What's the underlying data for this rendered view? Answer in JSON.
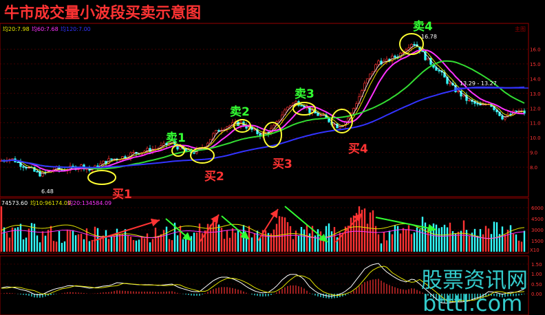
{
  "title": "牛市成交量小波段买卖示意图",
  "watermark": {
    "line1": "股票资讯网",
    "line2": "btttl.com"
  },
  "price_panel": {
    "legend": [
      {
        "label": "均20:7.98",
        "color": "#e6e600"
      },
      {
        "label": "均60:7.68",
        "color": "#ff33ff"
      },
      {
        "label": "均120:7.00",
        "color": "#3333ff"
      }
    ],
    "corner_label": "主图",
    "axis_ticks": [
      "16.0",
      "15.0",
      "14.0",
      "13.0",
      "12.0",
      "11.0",
      "10.0",
      "9.0",
      "8.0"
    ],
    "high_label": "16.78",
    "low_label": "6.48",
    "level_label": "13.29 - 13.27"
  },
  "volume_panel": {
    "legend": [
      {
        "label": "74573.60",
        "color": "#ffffff"
      },
      {
        "label": "均10:96174.09",
        "color": "#e6e600"
      },
      {
        "label": "均20:134584.09",
        "color": "#ff33ff"
      }
    ],
    "axis_ticks": [
      "6000",
      "4500",
      "3000",
      "1500"
    ],
    "unit": "X10"
  },
  "macd_panel": {
    "axis_ticks": [
      "1.50",
      "1.00",
      "0.50",
      "0.00"
    ]
  },
  "annotations": {
    "buy": [
      "买1",
      "买2",
      "买3",
      "买4"
    ],
    "sell": [
      "卖1",
      "卖2",
      "卖3",
      "卖4"
    ]
  },
  "colors": {
    "up": "#ff3333",
    "down": "#33ffff",
    "ma20": "#e6e600",
    "ma60": "#ff33ff",
    "ma120": "#3333ff",
    "ma_green": "#33dd33",
    "buy_text": "#ff3333",
    "sell_text": "#33ff33",
    "circle": "#ffff33",
    "grid": "#660000",
    "axis_text": "#ff3333"
  },
  "chart_data": {
    "type": "candlestick",
    "price_path": [
      [
        0,
        8.4
      ],
      [
        10,
        8.6
      ],
      [
        20,
        8.5
      ],
      [
        30,
        8.2
      ],
      [
        40,
        8.0
      ],
      [
        50,
        7.7
      ],
      [
        60,
        7.5
      ],
      [
        70,
        7.7
      ],
      [
        80,
        7.9
      ],
      [
        90,
        7.8
      ],
      [
        100,
        7.9
      ],
      [
        110,
        8.0
      ],
      [
        120,
        8.1
      ],
      [
        130,
        7.8
      ],
      [
        140,
        8.0
      ],
      [
        150,
        8.3
      ],
      [
        160,
        8.5
      ],
      [
        170,
        8.6
      ],
      [
        180,
        8.7
      ],
      [
        190,
        8.9
      ],
      [
        200,
        9.0
      ],
      [
        210,
        9.1
      ],
      [
        220,
        9.2
      ],
      [
        230,
        9.3
      ],
      [
        240,
        9.5
      ],
      [
        250,
        9.7
      ],
      [
        260,
        9.3
      ],
      [
        270,
        9.1
      ],
      [
        280,
        9.0
      ],
      [
        290,
        9.2
      ],
      [
        300,
        9.6
      ],
      [
        310,
        10.2
      ],
      [
        320,
        10.6
      ],
      [
        330,
        10.8
      ],
      [
        340,
        10.9
      ],
      [
        350,
        11.0
      ],
      [
        360,
        10.7
      ],
      [
        370,
        10.4
      ],
      [
        380,
        10.2
      ],
      [
        390,
        10.4
      ],
      [
        400,
        10.8
      ],
      [
        410,
        11.6
      ],
      [
        420,
        12.2
      ],
      [
        430,
        12.4
      ],
      [
        440,
        12.3
      ],
      [
        450,
        11.8
      ],
      [
        460,
        11.6
      ],
      [
        470,
        11.4
      ],
      [
        480,
        11.1
      ],
      [
        490,
        10.8
      ],
      [
        500,
        11.0
      ],
      [
        510,
        11.6
      ],
      [
        520,
        12.6
      ],
      [
        530,
        13.6
      ],
      [
        540,
        14.4
      ],
      [
        550,
        15.2
      ],
      [
        560,
        15.1
      ],
      [
        570,
        15.4
      ],
      [
        580,
        15.6
      ],
      [
        590,
        16.1
      ],
      [
        600,
        16.5
      ],
      [
        610,
        16.0
      ],
      [
        620,
        15.3
      ],
      [
        630,
        14.9
      ],
      [
        640,
        14.4
      ],
      [
        650,
        13.8
      ],
      [
        660,
        13.3
      ],
      [
        670,
        12.9
      ],
      [
        680,
        12.5
      ],
      [
        690,
        12.3
      ],
      [
        700,
        12.1
      ],
      [
        710,
        12.4
      ],
      [
        720,
        11.9
      ],
      [
        730,
        11.4
      ],
      [
        740,
        11.5
      ],
      [
        750,
        11.8
      ],
      [
        760,
        11.7
      ]
    ],
    "volume_panel_values_note": "",
    "ylim": [
      6.0,
      17.0
    ]
  }
}
